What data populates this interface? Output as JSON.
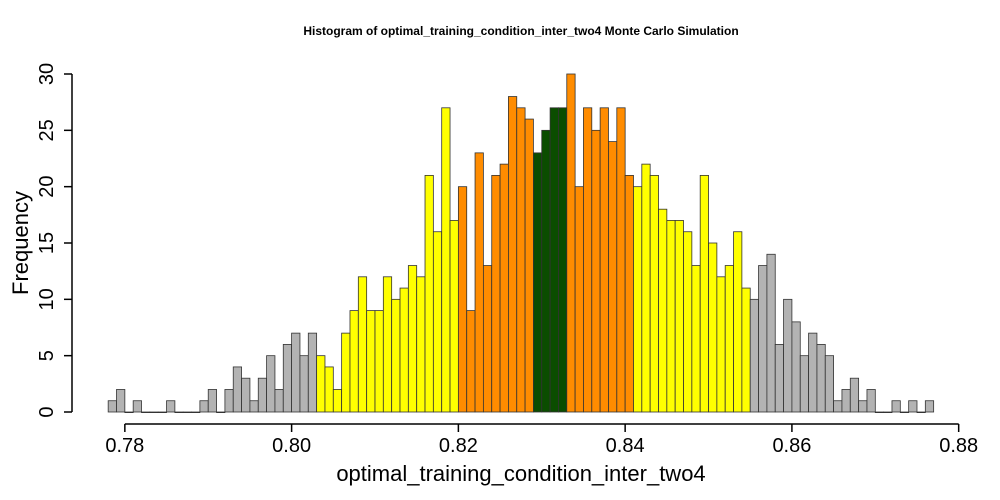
{
  "chart_data": {
    "type": "bar",
    "title": "Histogram of  optimal_training_condition_inter_two4  Monte Carlo Simulation",
    "xlabel": "optimal_training_condition_inter_two4",
    "ylabel": "Frequency",
    "xlim": [
      0.7775,
      0.878
    ],
    "ylim": [
      0,
      30
    ],
    "x_ticks": [
      0.78,
      0.8,
      0.82,
      0.84,
      0.86,
      0.88
    ],
    "x_tick_labels": [
      "0.78",
      "0.80",
      "0.82",
      "0.84",
      "0.86",
      "0.88"
    ],
    "y_ticks": [
      0,
      5,
      10,
      15,
      20,
      25,
      30
    ],
    "y_tick_labels": [
      "0",
      "5",
      "10",
      "15",
      "20",
      "25",
      "30"
    ],
    "bin_start": 0.778,
    "bin_width": 0.001,
    "values": [
      1,
      2,
      0,
      1,
      0,
      0,
      0,
      1,
      0,
      0,
      0,
      1,
      2,
      0,
      2,
      4,
      3,
      1,
      3,
      5,
      2,
      6,
      7,
      5,
      7,
      5,
      4,
      2,
      7,
      9,
      12,
      9,
      9,
      12,
      10,
      11,
      13,
      12,
      21,
      16,
      27,
      17,
      20,
      9,
      23,
      13,
      21,
      22,
      28,
      27,
      26,
      23,
      25,
      27,
      27,
      30,
      20,
      27,
      25,
      27,
      24,
      27,
      21,
      20,
      22,
      21,
      18,
      17,
      17,
      16,
      13,
      21,
      15,
      12,
      13,
      16,
      11,
      10,
      13,
      14,
      6,
      10,
      8,
      5,
      7,
      6,
      5,
      1,
      2,
      3,
      1,
      2,
      0,
      0,
      1,
      0,
      1,
      0,
      1
    ],
    "colors": {
      "tail": "#b3b3b3",
      "outer": "#ffff00",
      "inner": "#ff8c00",
      "center": "#0b4d00"
    },
    "color_bands": [
      {
        "from": 0.778,
        "to": 0.803,
        "color_key": "tail"
      },
      {
        "from": 0.803,
        "to": 0.82,
        "color_key": "outer"
      },
      {
        "from": 0.82,
        "to": 0.829,
        "color_key": "inner"
      },
      {
        "from": 0.829,
        "to": 0.833,
        "color_key": "center"
      },
      {
        "from": 0.833,
        "to": 0.841,
        "color_key": "inner"
      },
      {
        "from": 0.841,
        "to": 0.855,
        "color_key": "outer"
      },
      {
        "from": 0.855,
        "to": 0.878,
        "color_key": "tail"
      }
    ]
  }
}
